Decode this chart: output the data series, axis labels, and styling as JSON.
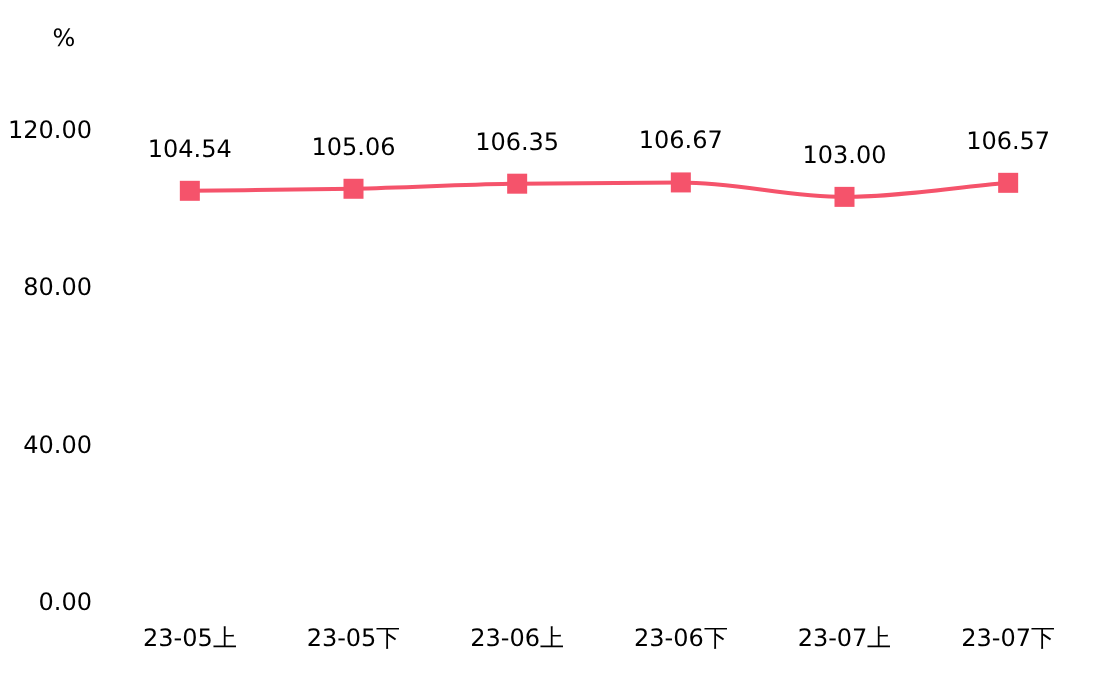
{
  "chart_data": {
    "type": "line",
    "ylabel": "%",
    "categories": [
      "23-05上",
      "23-05下",
      "23-06上",
      "23-06下",
      "23-07上",
      "23-07下"
    ],
    "series": [
      {
        "color": "#f5536b",
        "values": [
          104.54,
          105.06,
          106.35,
          106.67,
          103.0,
          106.57
        ]
      }
    ],
    "value_labels": [
      "104.54",
      "105.06",
      "106.35",
      "106.67",
      "103.00",
      "106.57"
    ],
    "ylim": [
      0,
      120
    ],
    "yticks": [
      {
        "value": 0,
        "label": "0.00"
      },
      {
        "value": 40,
        "label": "40.00"
      },
      {
        "value": 80,
        "label": "80.00"
      },
      {
        "value": 120,
        "label": "120.00"
      }
    ],
    "marker": "square",
    "line_style": "solid",
    "grid": false
  }
}
